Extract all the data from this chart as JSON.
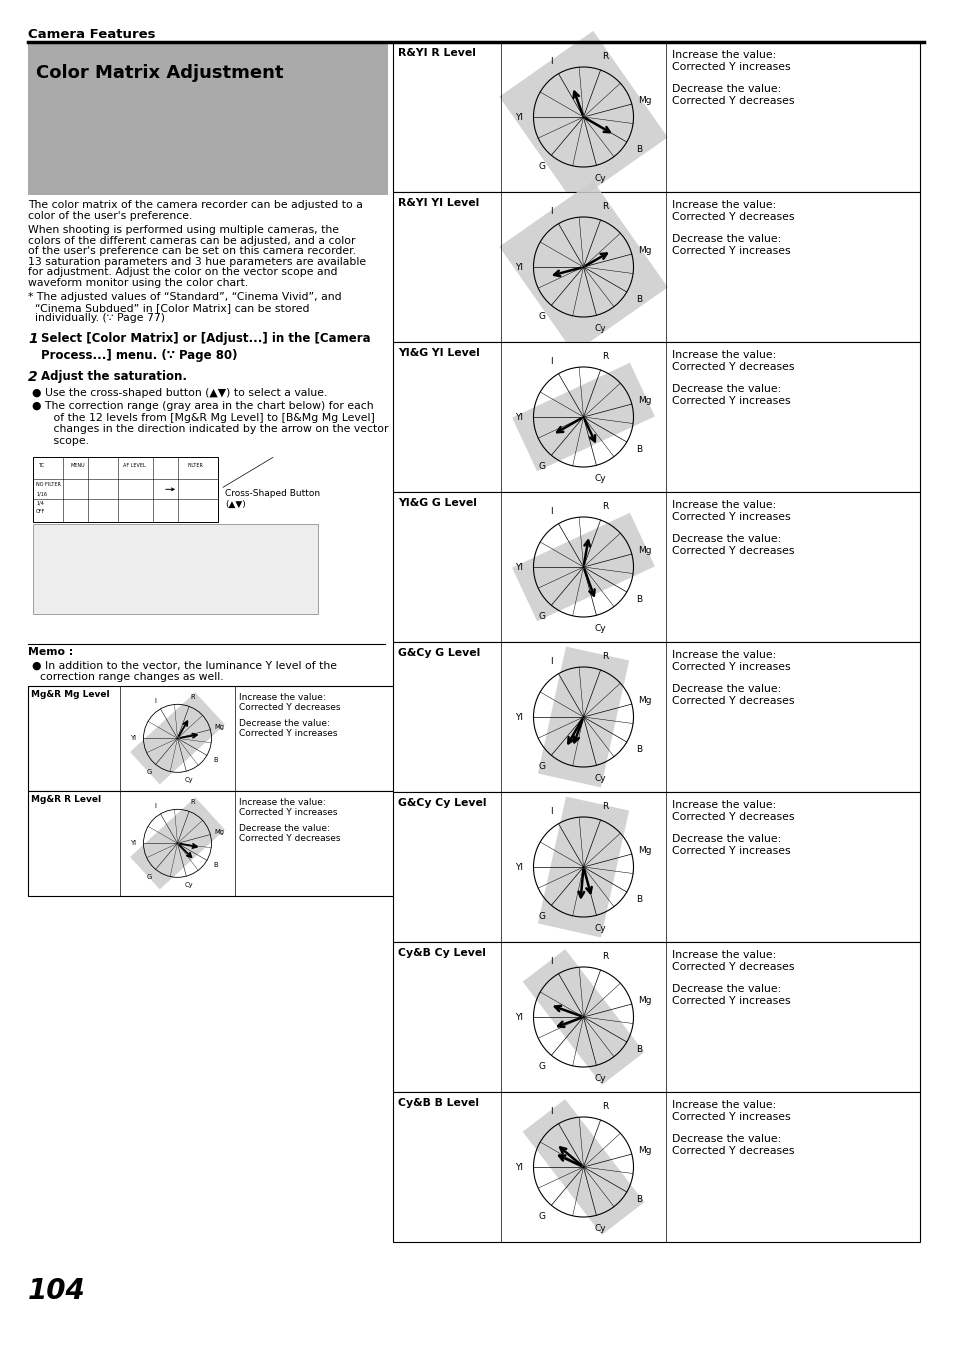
{
  "page_title": "Camera Features",
  "section_title": "Color Matrix Adjustment",
  "section_title_bg": "#aaaaaa",
  "right_table_rows": [
    {
      "label": "R&YI R Level",
      "increase_text": "Increase the value:\nCorrected Y increases",
      "decrease_text": "Decrease the value:\nCorrected Y decreases",
      "sector": "R_YI",
      "arrows": [
        [
          330,
          150
        ],
        [
          110,
          150
        ]
      ]
    },
    {
      "label": "R&YI YI Level",
      "increase_text": "Increase the value:\nCorrected Y decreases",
      "decrease_text": "Decrease the value:\nCorrected Y increases",
      "sector": "R_YI",
      "arrows": [
        [
          195,
          150
        ],
        [
          20,
          150
        ]
      ]
    },
    {
      "label": "YI&G YI Level",
      "increase_text": "Increase the value:\nCorrected Y decreases",
      "decrease_text": "Decrease the value:\nCorrected Y increases",
      "sector": "YI_G",
      "arrows": [
        [
          200,
          150
        ],
        [
          290,
          150
        ]
      ]
    },
    {
      "label": "YI&G G Level",
      "increase_text": "Increase the value:\nCorrected Y increases",
      "decrease_text": "Decrease the value:\nCorrected Y decreases",
      "sector": "YI_G",
      "arrows": [
        [
          290,
          150
        ],
        [
          75,
          150
        ]
      ]
    },
    {
      "label": "G&Cy G Level",
      "increase_text": "Increase the value:\nCorrected Y increases",
      "decrease_text": "Decrease the value:\nCorrected Y decreases",
      "sector": "G_Cy",
      "arrows": [
        [
          290,
          150
        ],
        [
          240,
          150
        ]
      ]
    },
    {
      "label": "G&Cy Cy Level",
      "increase_text": "Increase the value:\nCorrected Y decreases",
      "decrease_text": "Decrease the value:\nCorrected Y increases",
      "sector": "G_Cy",
      "arrows": [
        [
          240,
          150
        ],
        [
          290,
          150
        ]
      ]
    },
    {
      "label": "Cy&B Cy Level",
      "increase_text": "Increase the value:\nCorrected Y decreases",
      "decrease_text": "Decrease the value:\nCorrected Y increases",
      "sector": "Cy_B",
      "arrows": [
        [
          240,
          150
        ],
        [
          290,
          150
        ]
      ]
    },
    {
      "label": "Cy&B B Level",
      "increase_text": "Increase the value:\nCorrected Y increases",
      "decrease_text": "Decrease the value:\nCorrected Y decreases",
      "sector": "Cy_B",
      "arrows": [
        [
          130,
          150
        ],
        [
          155,
          150
        ]
      ]
    }
  ],
  "bottom_left_rows": [
    {
      "label": "Mg&R Mg Level",
      "increase_text": "Increase the value:\nCorrected Y decreases",
      "decrease_text": "Decrease the value:\nCorrected Y increases",
      "sector": "Mg_R",
      "arrows": [
        [
          60,
          80
        ],
        [
          10,
          80
        ]
      ]
    },
    {
      "label": "Mg&R R Level",
      "increase_text": "Increase the value:\nCorrected Y increases",
      "decrease_text": "Decrease the value:\nCorrected Y decreases",
      "sector": "Mg_R",
      "arrows": [
        [
          350,
          80
        ],
        [
          315,
          80
        ]
      ]
    }
  ],
  "page_number": "104",
  "bg_color": "#ffffff"
}
